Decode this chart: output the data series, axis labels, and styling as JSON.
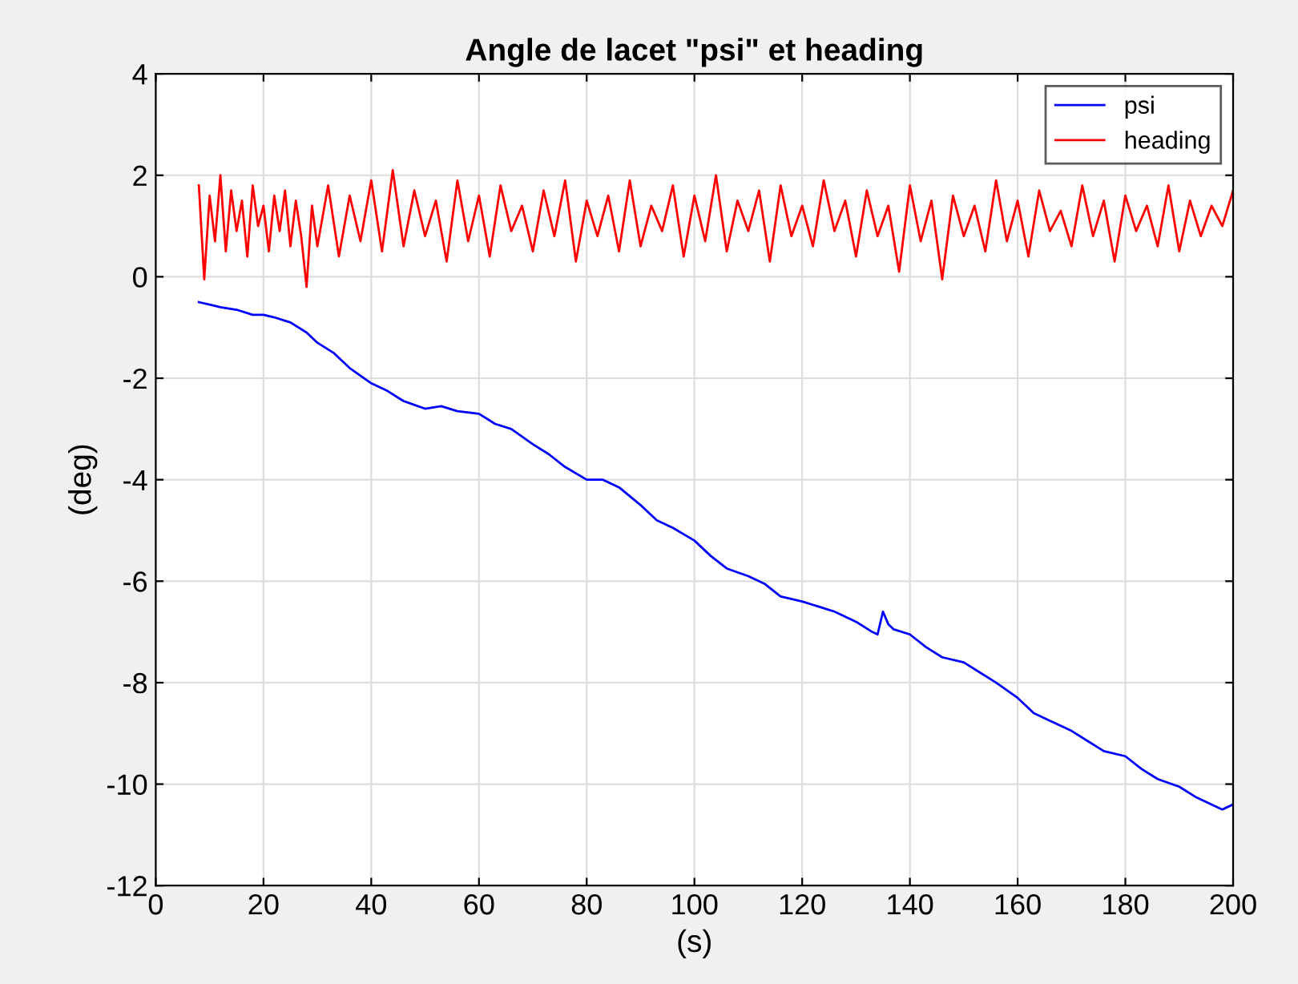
{
  "chart_data": {
    "type": "line",
    "title": "Angle de lacet \"psi\" et heading",
    "xlabel": "(s)",
    "ylabel": "(deg)",
    "xlim": [
      0,
      200
    ],
    "xticks": [
      0,
      20,
      40,
      60,
      80,
      100,
      120,
      140,
      160,
      180,
      200
    ],
    "ylim": [
      -12,
      4
    ],
    "yticks": [
      -12,
      -10,
      -8,
      -6,
      -4,
      -2,
      0,
      2,
      4
    ],
    "grid": true,
    "legend": "top right",
    "series": [
      {
        "name": "psi",
        "color": "#0000ff",
        "x": [
          8,
          10,
          12,
          15,
          18,
          20,
          22,
          25,
          28,
          30,
          33,
          36,
          40,
          43,
          46,
          50,
          53,
          56,
          60,
          63,
          66,
          70,
          73,
          76,
          80,
          83,
          86,
          90,
          93,
          96,
          100,
          103,
          106,
          110,
          113,
          116,
          120,
          123,
          126,
          130,
          133,
          134,
          135,
          136,
          137,
          140,
          143,
          146,
          150,
          153,
          156,
          160,
          163,
          166,
          170,
          173,
          176,
          180,
          183,
          186,
          190,
          193,
          196,
          198,
          200
        ],
        "values": [
          -0.5,
          -0.55,
          -0.6,
          -0.65,
          -0.75,
          -0.75,
          -0.8,
          -0.9,
          -1.1,
          -1.3,
          -1.5,
          -1.8,
          -2.1,
          -2.25,
          -2.45,
          -2.6,
          -2.55,
          -2.65,
          -2.7,
          -2.9,
          -3.0,
          -3.3,
          -3.5,
          -3.75,
          -4.0,
          -4.0,
          -4.15,
          -4.5,
          -4.8,
          -4.95,
          -5.2,
          -5.5,
          -5.75,
          -5.9,
          -6.05,
          -6.3,
          -6.4,
          -6.5,
          -6.6,
          -6.8,
          -7.0,
          -7.05,
          -6.6,
          -6.85,
          -6.95,
          -7.05,
          -7.3,
          -7.5,
          -7.6,
          -7.8,
          -8.0,
          -8.3,
          -8.6,
          -8.75,
          -8.95,
          -9.15,
          -9.35,
          -9.45,
          -9.7,
          -9.9,
          -10.05,
          -10.25,
          -10.4,
          -10.5,
          -10.4
        ]
      },
      {
        "name": "heading",
        "color": "#ff0000",
        "x": [
          8,
          9,
          10,
          11,
          12,
          13,
          14,
          15,
          16,
          17,
          18,
          19,
          20,
          21,
          22,
          23,
          24,
          25,
          26,
          27,
          28,
          29,
          30,
          32,
          34,
          36,
          38,
          40,
          42,
          44,
          46,
          48,
          50,
          52,
          54,
          56,
          58,
          60,
          62,
          64,
          66,
          68,
          70,
          72,
          74,
          76,
          78,
          80,
          82,
          84,
          86,
          88,
          90,
          92,
          94,
          96,
          98,
          100,
          102,
          104,
          106,
          108,
          110,
          112,
          114,
          116,
          118,
          120,
          122,
          124,
          126,
          128,
          130,
          132,
          134,
          136,
          138,
          140,
          142,
          144,
          146,
          148,
          150,
          152,
          154,
          156,
          158,
          160,
          162,
          164,
          166,
          168,
          170,
          172,
          174,
          176,
          178,
          180,
          182,
          184,
          186,
          188,
          190,
          192,
          194,
          196,
          198,
          200
        ],
        "values": [
          1.8,
          -0.05,
          1.6,
          0.7,
          2.0,
          0.5,
          1.7,
          0.9,
          1.5,
          0.4,
          1.8,
          1.0,
          1.4,
          0.5,
          1.6,
          0.9,
          1.7,
          0.6,
          1.5,
          0.8,
          -0.2,
          1.4,
          0.6,
          1.8,
          0.4,
          1.6,
          0.7,
          1.9,
          0.5,
          2.1,
          0.6,
          1.7,
          0.8,
          1.5,
          0.3,
          1.9,
          0.7,
          1.6,
          0.4,
          1.8,
          0.9,
          1.4,
          0.5,
          1.7,
          0.8,
          1.9,
          0.3,
          1.5,
          0.8,
          1.6,
          0.5,
          1.9,
          0.6,
          1.4,
          0.9,
          1.8,
          0.4,
          1.6,
          0.7,
          2.0,
          0.5,
          1.5,
          0.9,
          1.7,
          0.3,
          1.8,
          0.8,
          1.4,
          0.6,
          1.9,
          0.9,
          1.5,
          0.4,
          1.7,
          0.8,
          1.4,
          0.1,
          1.8,
          0.7,
          1.5,
          -0.05,
          1.6,
          0.8,
          1.4,
          0.5,
          1.9,
          0.7,
          1.5,
          0.4,
          1.7,
          0.9,
          1.3,
          0.6,
          1.8,
          0.8,
          1.5,
          0.3,
          1.6,
          0.9,
          1.4,
          0.6,
          1.8,
          0.5,
          1.5,
          0.8,
          1.4,
          1.0,
          1.7
        ]
      }
    ]
  }
}
